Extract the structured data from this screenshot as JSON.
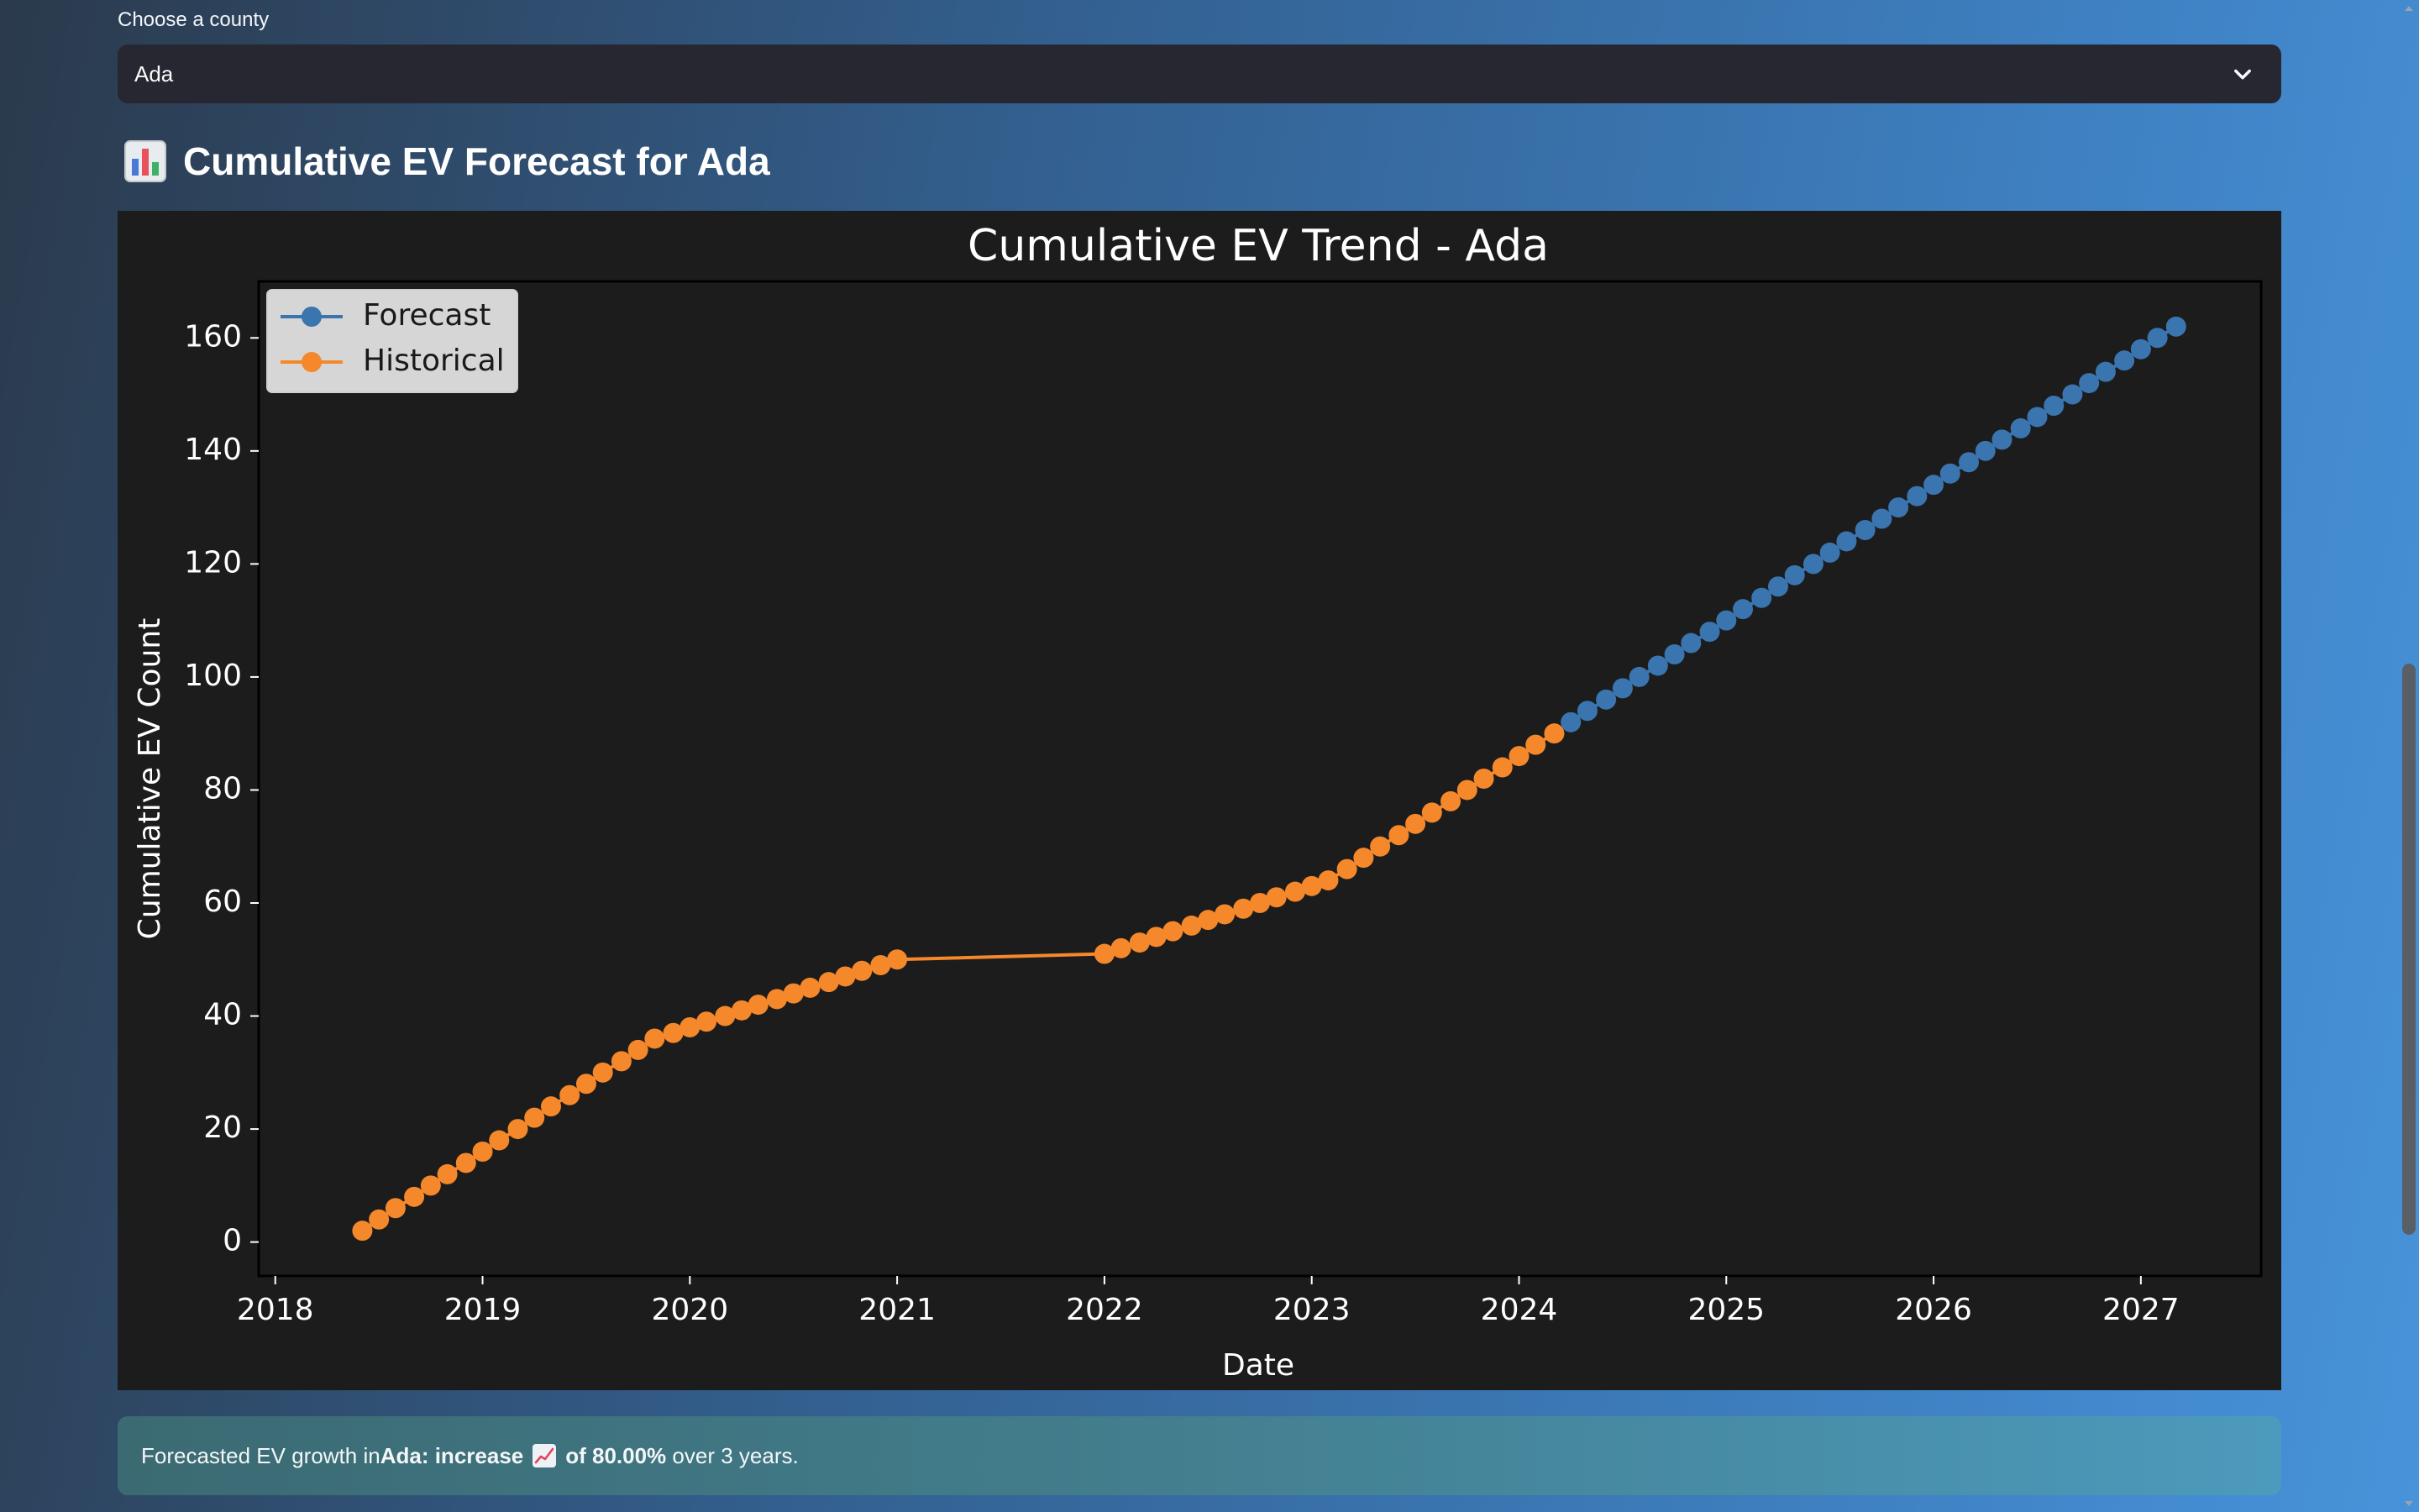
{
  "select": {
    "label": "Choose a county",
    "value": "Ada",
    "icon": "chevron-down-icon"
  },
  "heading": {
    "icon": "bar-chart-icon",
    "text": "Cumulative EV Forecast for Ada"
  },
  "info": {
    "prefix": "Forecasted EV growth in ",
    "county": "Ada",
    "trend": ": increase",
    "icon": "chart-increasing-icon",
    "pct": "of 80.00%",
    "suffix": " over 3 years."
  },
  "chart_data": {
    "type": "line",
    "title": "Cumulative EV Trend - Ada",
    "xlabel": "Date",
    "ylabel": "Cumulative EV Count",
    "xlim": [
      2017.92,
      2027.58
    ],
    "ylim": [
      -6,
      170
    ],
    "xticks": [
      "2018",
      "2019",
      "2020",
      "2021",
      "2022",
      "2023",
      "2024",
      "2025",
      "2026",
      "2027"
    ],
    "yticks": [
      "0",
      "20",
      "40",
      "60",
      "80",
      "100",
      "120",
      "140",
      "160"
    ],
    "grid": true,
    "legend_position": "top-left",
    "series": [
      {
        "name": "Forecast",
        "color": "#3a75af",
        "x": [
          2024.25,
          2024.33,
          2024.42,
          2024.5,
          2024.58,
          2024.67,
          2024.75,
          2024.83,
          2024.92,
          2025.0,
          2025.08,
          2025.17,
          2025.25,
          2025.33,
          2025.42,
          2025.5,
          2025.58,
          2025.67,
          2025.75,
          2025.83,
          2025.92,
          2026.0,
          2026.08,
          2026.17,
          2026.25,
          2026.33,
          2026.42,
          2026.5,
          2026.58,
          2026.67,
          2026.75,
          2026.83,
          2026.92,
          2027.0,
          2027.08,
          2027.17
        ],
        "y": [
          92,
          94,
          96,
          98,
          100,
          102,
          104,
          106,
          108,
          110,
          112,
          114,
          116,
          118,
          120,
          122,
          124,
          126,
          128,
          130,
          132,
          134,
          136,
          138,
          140,
          142,
          144,
          146,
          148,
          150,
          152,
          154,
          156,
          158,
          160,
          162
        ]
      },
      {
        "name": "Historical",
        "color": "#f5882a",
        "x": [
          2018.42,
          2018.5,
          2018.58,
          2018.67,
          2018.75,
          2018.83,
          2018.92,
          2019.0,
          2019.08,
          2019.17,
          2019.25,
          2019.33,
          2019.42,
          2019.5,
          2019.58,
          2019.67,
          2019.75,
          2019.83,
          2019.92,
          2020.0,
          2020.08,
          2020.17,
          2020.25,
          2020.33,
          2020.42,
          2020.5,
          2020.58,
          2020.67,
          2020.75,
          2020.83,
          2020.92,
          2021.0,
          2022.0,
          2022.08,
          2022.17,
          2022.25,
          2022.33,
          2022.42,
          2022.5,
          2022.58,
          2022.67,
          2022.75,
          2022.83,
          2022.92,
          2023.0,
          2023.08,
          2023.17,
          2023.25,
          2023.33,
          2023.42,
          2023.5,
          2023.58,
          2023.67,
          2023.75,
          2023.83,
          2023.92,
          2024.0,
          2024.08,
          2024.17
        ],
        "y": [
          2,
          4,
          6,
          8,
          10,
          12,
          14,
          16,
          18,
          20,
          22,
          24,
          26,
          28,
          30,
          32,
          34,
          36,
          37,
          38,
          39,
          40,
          41,
          42,
          43,
          44,
          45,
          46,
          47,
          48,
          49,
          50,
          51,
          52,
          53,
          54,
          55,
          56,
          57,
          58,
          59,
          60,
          61,
          62,
          63,
          64,
          66,
          68,
          70,
          72,
          74,
          76,
          78,
          80,
          82,
          84,
          86,
          88,
          90
        ]
      }
    ]
  }
}
